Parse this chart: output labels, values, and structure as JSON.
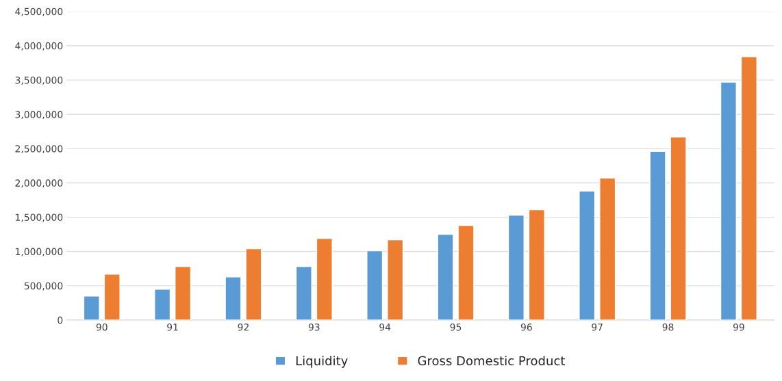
{
  "chart_data": {
    "type": "bar",
    "categories": [
      "90",
      "91",
      "92",
      "93",
      "94",
      "95",
      "96",
      "97",
      "98",
      "99"
    ],
    "series": [
      {
        "name": "Liquidity",
        "color": "#5b9bd5",
        "values": [
          350000,
          450000,
          630000,
          780000,
          1010000,
          1250000,
          1530000,
          1880000,
          2460000,
          3470000
        ]
      },
      {
        "name": "Gross Domestic Product",
        "color": "#ed7d31",
        "values": [
          670000,
          780000,
          1040000,
          1190000,
          1170000,
          1380000,
          1610000,
          2070000,
          2670000,
          3840000
        ]
      }
    ],
    "ylim": [
      0,
      4500000
    ],
    "yticks": [
      {
        "value": 0,
        "label": "0"
      },
      {
        "value": 500000,
        "label": "500,000"
      },
      {
        "value": 1000000,
        "label": "1,000,000"
      },
      {
        "value": 1500000,
        "label": "1,500,000"
      },
      {
        "value": 2000000,
        "label": "2,000,000"
      },
      {
        "value": 2500000,
        "label": "2,500,000"
      },
      {
        "value": 3000000,
        "label": "3,000,000"
      },
      {
        "value": 3500000,
        "label": "3,500,000"
      },
      {
        "value": 4000000,
        "label": "4,000,000"
      },
      {
        "value": 4500000,
        "label": "4,500,000"
      }
    ],
    "grid": "y",
    "legend": "bottom"
  }
}
